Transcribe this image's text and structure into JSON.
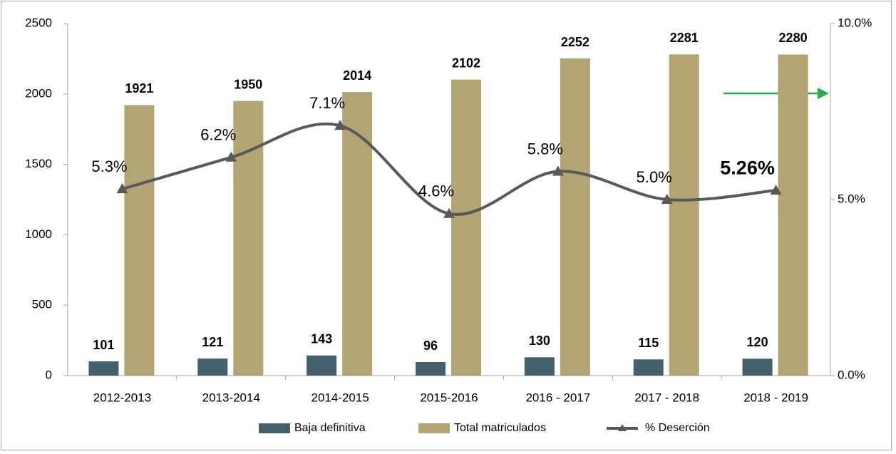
{
  "chart_data": {
    "type": "bar",
    "categories": [
      "2012-2013",
      "2013-2014",
      "2014-2015",
      "2015-2016",
      "2016 - 2017",
      "2017 - 2018",
      "2018 - 2019"
    ],
    "series": [
      {
        "name": "Baja definitiva",
        "color": "#44606a",
        "values": [
          101,
          121,
          143,
          96,
          130,
          115,
          120
        ]
      },
      {
        "name": "Total matriculados",
        "color": "#b2a573",
        "values": [
          1921,
          1950,
          2014,
          2102,
          2252,
          2281,
          2280
        ]
      },
      {
        "name": "% Deserción",
        "type": "line",
        "axis": "y2",
        "color": "#595959",
        "values": [
          5.3,
          6.2,
          7.1,
          4.6,
          5.8,
          5.0,
          5.26
        ],
        "value_labels": [
          "5.3%",
          "6.2%",
          "7.1%",
          "4.6%",
          "5.8%",
          "5.0%",
          "5.26%"
        ]
      }
    ],
    "ylim": [
      0,
      2500
    ],
    "yticks": [
      0,
      500,
      1000,
      1500,
      2000,
      2500
    ],
    "y2lim": [
      0,
      10
    ],
    "y2ticks": [
      {
        "value": 0,
        "label": "0.0%"
      },
      {
        "value": 5,
        "label": "5.0%"
      },
      {
        "value": 10,
        "label": "10.0%"
      }
    ],
    "legend": "bottom"
  }
}
